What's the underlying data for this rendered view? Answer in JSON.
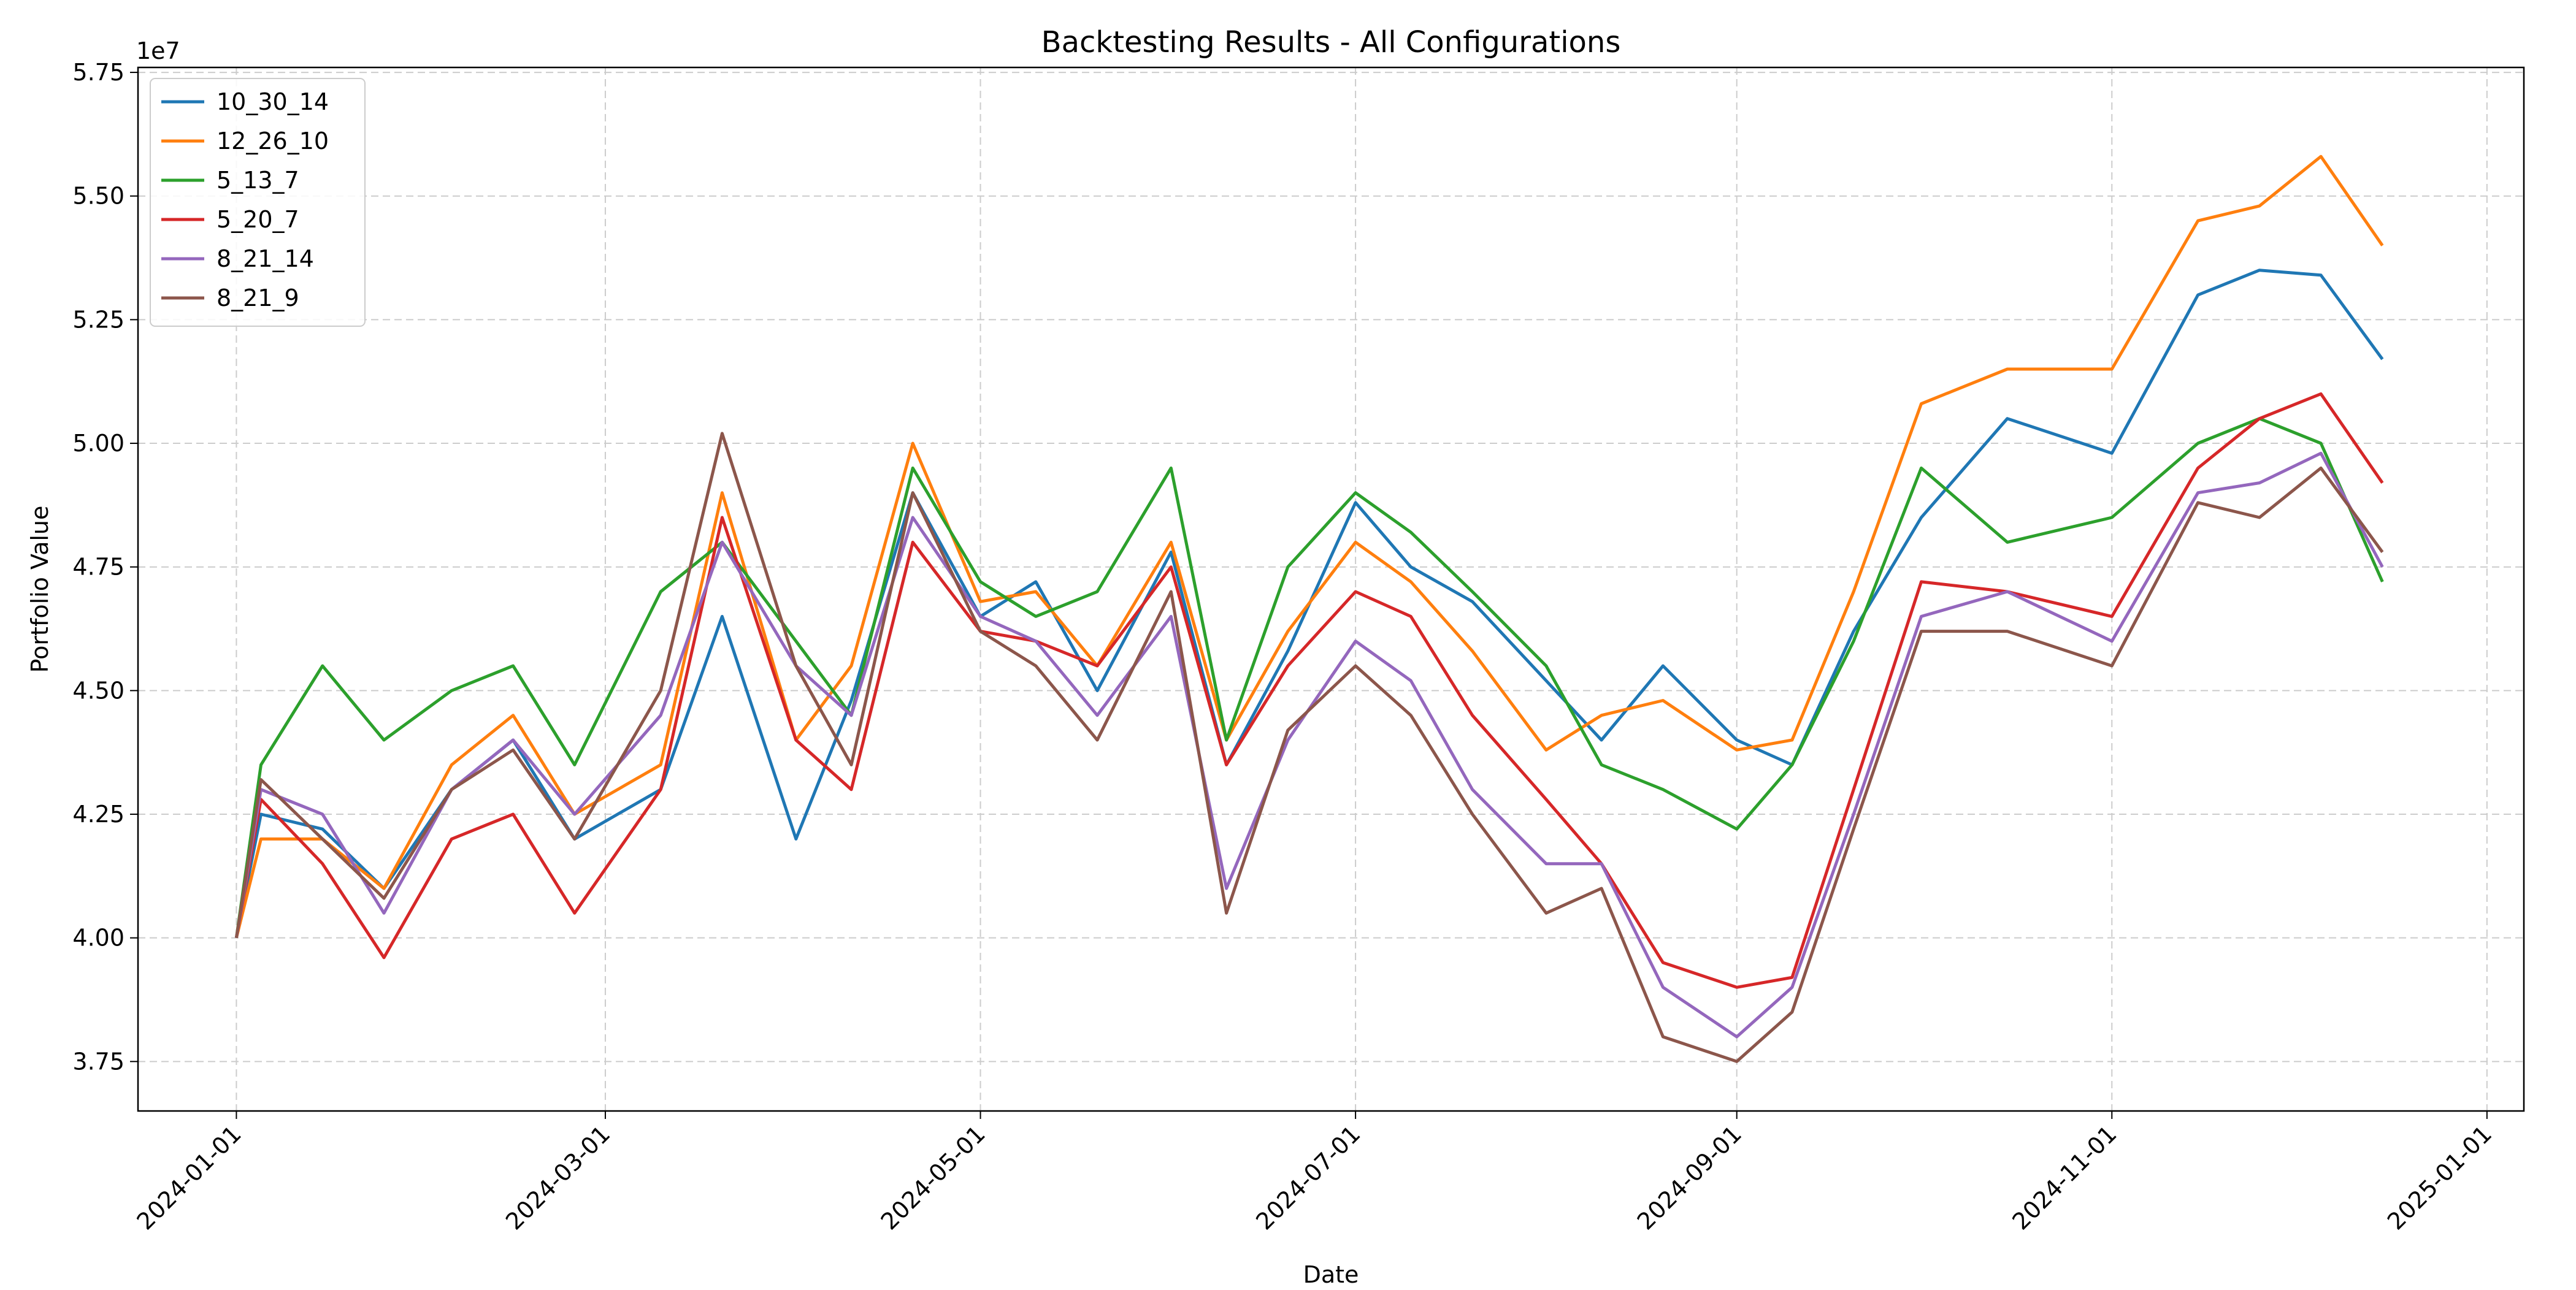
{
  "chart_data": {
    "type": "line",
    "title": "Backtesting Results - All Configurations",
    "xlabel": "Date",
    "ylabel": "Portfolio Value",
    "y_offset_label": "1e7",
    "x_ticks": [
      "2024-01-01",
      "2024-03-01",
      "2024-05-01",
      "2024-07-01",
      "2024-09-01",
      "2024-11-01",
      "2025-01-01"
    ],
    "x_tick_values": [
      "2024-01-01",
      "2024-03-01",
      "2024-05-01",
      "2024-07-01",
      "2024-09-01",
      "2024-11-01",
      "2025-01-01"
    ],
    "y_ticks": [
      "3.75",
      "4.00",
      "4.25",
      "4.50",
      "4.75",
      "5.00",
      "5.25",
      "5.50",
      "5.75"
    ],
    "y_tick_values": [
      3.75,
      4.0,
      4.25,
      4.5,
      4.75,
      5.0,
      5.25,
      5.5,
      5.75
    ],
    "xlim": [
      "2023-12-16",
      "2025-01-07"
    ],
    "ylim": [
      3.65,
      5.76
    ],
    "grid": true,
    "legend_position": "top-left",
    "series": [
      {
        "name": "10_30_14",
        "color": "#1f77b4",
        "x": [
          "2024-01-01",
          "2024-01-05",
          "2024-01-15",
          "2024-01-25",
          "2024-02-05",
          "2024-02-15",
          "2024-02-25",
          "2024-03-10",
          "2024-03-20",
          "2024-04-01",
          "2024-04-10",
          "2024-04-20",
          "2024-05-01",
          "2024-05-10",
          "2024-05-20",
          "2024-06-01",
          "2024-06-10",
          "2024-06-20",
          "2024-07-01",
          "2024-07-10",
          "2024-07-20",
          "2024-08-01",
          "2024-08-10",
          "2024-08-20",
          "2024-09-01",
          "2024-09-10",
          "2024-09-20",
          "2024-10-01",
          "2024-10-15",
          "2024-11-01",
          "2024-11-15",
          "2024-11-25",
          "2024-12-05",
          "2024-12-15"
        ],
        "y": [
          4.0,
          4.25,
          4.22,
          4.1,
          4.3,
          4.4,
          4.2,
          4.3,
          4.65,
          4.2,
          4.48,
          4.9,
          4.65,
          4.72,
          4.5,
          4.78,
          4.35,
          4.58,
          4.88,
          4.75,
          4.68,
          4.52,
          4.4,
          4.55,
          4.4,
          4.35,
          4.62,
          4.85,
          5.05,
          4.98,
          5.3,
          5.35,
          5.34,
          5.17
        ]
      },
      {
        "name": "12_26_10",
        "color": "#ff7f0e",
        "x": [
          "2024-01-01",
          "2024-01-05",
          "2024-01-15",
          "2024-01-25",
          "2024-02-05",
          "2024-02-15",
          "2024-02-25",
          "2024-03-10",
          "2024-03-20",
          "2024-04-01",
          "2024-04-10",
          "2024-04-20",
          "2024-05-01",
          "2024-05-10",
          "2024-05-20",
          "2024-06-01",
          "2024-06-10",
          "2024-06-20",
          "2024-07-01",
          "2024-07-10",
          "2024-07-20",
          "2024-08-01",
          "2024-08-10",
          "2024-08-20",
          "2024-09-01",
          "2024-09-10",
          "2024-09-20",
          "2024-10-01",
          "2024-10-15",
          "2024-11-01",
          "2024-11-15",
          "2024-11-25",
          "2024-12-05",
          "2024-12-15"
        ],
        "y": [
          4.0,
          4.2,
          4.2,
          4.1,
          4.35,
          4.45,
          4.25,
          4.35,
          4.9,
          4.4,
          4.55,
          5.0,
          4.68,
          4.7,
          4.55,
          4.8,
          4.4,
          4.62,
          4.8,
          4.72,
          4.58,
          4.38,
          4.45,
          4.48,
          4.38,
          4.4,
          4.7,
          5.08,
          5.15,
          5.15,
          5.45,
          5.48,
          5.58,
          5.4
        ]
      },
      {
        "name": "5_13_7",
        "color": "#2ca02c",
        "x": [
          "2024-01-01",
          "2024-01-05",
          "2024-01-15",
          "2024-01-25",
          "2024-02-05",
          "2024-02-15",
          "2024-02-25",
          "2024-03-10",
          "2024-03-20",
          "2024-04-01",
          "2024-04-10",
          "2024-04-20",
          "2024-05-01",
          "2024-05-10",
          "2024-05-20",
          "2024-06-01",
          "2024-06-10",
          "2024-06-20",
          "2024-07-01",
          "2024-07-10",
          "2024-07-20",
          "2024-08-01",
          "2024-08-10",
          "2024-08-20",
          "2024-09-01",
          "2024-09-10",
          "2024-09-20",
          "2024-10-01",
          "2024-10-15",
          "2024-11-01",
          "2024-11-15",
          "2024-11-25",
          "2024-12-05",
          "2024-12-15"
        ],
        "y": [
          4.0,
          4.35,
          4.55,
          4.4,
          4.5,
          4.55,
          4.35,
          4.7,
          4.8,
          4.6,
          4.45,
          4.95,
          4.72,
          4.65,
          4.7,
          4.95,
          4.4,
          4.75,
          4.9,
          4.82,
          4.7,
          4.55,
          4.35,
          4.3,
          4.22,
          4.35,
          4.6,
          4.95,
          4.8,
          4.85,
          5.0,
          5.05,
          5.0,
          4.72
        ]
      },
      {
        "name": "5_20_7",
        "color": "#d62728",
        "x": [
          "2024-01-01",
          "2024-01-05",
          "2024-01-15",
          "2024-01-25",
          "2024-02-05",
          "2024-02-15",
          "2024-02-25",
          "2024-03-10",
          "2024-03-20",
          "2024-04-01",
          "2024-04-10",
          "2024-04-20",
          "2024-05-01",
          "2024-05-10",
          "2024-05-20",
          "2024-06-01",
          "2024-06-10",
          "2024-06-20",
          "2024-07-01",
          "2024-07-10",
          "2024-07-20",
          "2024-08-01",
          "2024-08-10",
          "2024-08-20",
          "2024-09-01",
          "2024-09-10",
          "2024-09-20",
          "2024-10-01",
          "2024-10-15",
          "2024-11-01",
          "2024-11-15",
          "2024-11-25",
          "2024-12-05",
          "2024-12-15"
        ],
        "y": [
          4.0,
          4.28,
          4.15,
          3.96,
          4.2,
          4.25,
          4.05,
          4.3,
          4.85,
          4.4,
          4.3,
          4.8,
          4.62,
          4.6,
          4.55,
          4.75,
          4.35,
          4.55,
          4.7,
          4.65,
          4.45,
          4.28,
          4.15,
          3.95,
          3.9,
          3.92,
          4.3,
          4.72,
          4.7,
          4.65,
          4.95,
          5.05,
          5.1,
          4.92
        ]
      },
      {
        "name": "8_21_14",
        "color": "#9467bd",
        "x": [
          "2024-01-01",
          "2024-01-05",
          "2024-01-15",
          "2024-01-25",
          "2024-02-05",
          "2024-02-15",
          "2024-02-25",
          "2024-03-10",
          "2024-03-20",
          "2024-04-01",
          "2024-04-10",
          "2024-04-20",
          "2024-05-01",
          "2024-05-10",
          "2024-05-20",
          "2024-06-01",
          "2024-06-10",
          "2024-06-20",
          "2024-07-01",
          "2024-07-10",
          "2024-07-20",
          "2024-08-01",
          "2024-08-10",
          "2024-08-20",
          "2024-09-01",
          "2024-09-10",
          "2024-09-20",
          "2024-10-01",
          "2024-10-15",
          "2024-11-01",
          "2024-11-15",
          "2024-11-25",
          "2024-12-05",
          "2024-12-15"
        ],
        "y": [
          4.0,
          4.3,
          4.25,
          4.05,
          4.3,
          4.4,
          4.25,
          4.45,
          4.8,
          4.55,
          4.45,
          4.85,
          4.65,
          4.6,
          4.45,
          4.65,
          4.1,
          4.4,
          4.6,
          4.52,
          4.3,
          4.15,
          4.15,
          3.9,
          3.8,
          3.9,
          4.25,
          4.65,
          4.7,
          4.6,
          4.9,
          4.92,
          4.98,
          4.75
        ]
      },
      {
        "name": "8_21_9",
        "color": "#8c564b",
        "x": [
          "2024-01-01",
          "2024-01-05",
          "2024-01-15",
          "2024-01-25",
          "2024-02-05",
          "2024-02-15",
          "2024-02-25",
          "2024-03-10",
          "2024-03-20",
          "2024-04-01",
          "2024-04-10",
          "2024-04-20",
          "2024-05-01",
          "2024-05-10",
          "2024-05-20",
          "2024-06-01",
          "2024-06-10",
          "2024-06-20",
          "2024-07-01",
          "2024-07-10",
          "2024-07-20",
          "2024-08-01",
          "2024-08-10",
          "2024-08-20",
          "2024-09-01",
          "2024-09-10",
          "2024-09-20",
          "2024-10-01",
          "2024-10-15",
          "2024-11-01",
          "2024-11-15",
          "2024-11-25",
          "2024-12-05",
          "2024-12-15"
        ],
        "y": [
          4.0,
          4.32,
          4.2,
          4.08,
          4.3,
          4.38,
          4.2,
          4.5,
          5.02,
          4.55,
          4.35,
          4.9,
          4.62,
          4.55,
          4.4,
          4.7,
          4.05,
          4.42,
          4.55,
          4.45,
          4.25,
          4.05,
          4.1,
          3.8,
          3.75,
          3.85,
          4.22,
          4.62,
          4.62,
          4.55,
          4.88,
          4.85,
          4.95,
          4.78
        ]
      }
    ]
  }
}
